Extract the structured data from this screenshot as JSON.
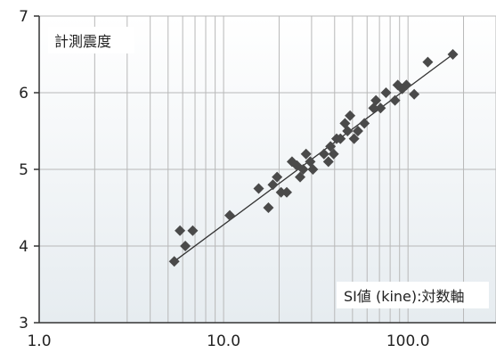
{
  "chart_data": {
    "type": "scatter",
    "title": "",
    "ylabel": "計測震度",
    "xlabel": "SI値 (kine):対数軸",
    "x_scale": "log",
    "xlim": [
      1,
      300
    ],
    "ylim": [
      3,
      7
    ],
    "x_ticks": [
      "1.0",
      "10.0",
      "100.0"
    ],
    "y_ticks": [
      "3",
      "4",
      "5",
      "6",
      "7"
    ],
    "grid": true,
    "colors": {
      "marker": "#4a4a4a",
      "grid": "#b8b8b8",
      "plot_bg_top": "#ffffff",
      "plot_bg_bottom": "#e6ecf0",
      "axis": "#333333"
    },
    "points": [
      [
        5.4,
        3.8
      ],
      [
        5.8,
        4.2
      ],
      [
        6.2,
        4.0
      ],
      [
        6.8,
        4.2
      ],
      [
        10.8,
        4.4
      ],
      [
        15.5,
        4.75
      ],
      [
        17.5,
        4.5
      ],
      [
        18.5,
        4.8
      ],
      [
        19.5,
        4.9
      ],
      [
        20.5,
        4.7
      ],
      [
        22,
        4.7
      ],
      [
        23.5,
        5.1
      ],
      [
        25,
        5.05
      ],
      [
        26,
        4.9
      ],
      [
        27,
        5.0
      ],
      [
        28,
        5.2
      ],
      [
        29.5,
        5.1
      ],
      [
        30.5,
        5.0
      ],
      [
        35,
        5.2
      ],
      [
        37,
        5.1
      ],
      [
        38,
        5.3
      ],
      [
        39.5,
        5.2
      ],
      [
        41,
        5.4
      ],
      [
        43,
        5.4
      ],
      [
        45.5,
        5.6
      ],
      [
        47,
        5.5
      ],
      [
        48.5,
        5.7
      ],
      [
        51,
        5.4
      ],
      [
        53.5,
        5.5
      ],
      [
        58,
        5.6
      ],
      [
        65,
        5.8
      ],
      [
        67,
        5.9
      ],
      [
        71,
        5.8
      ],
      [
        76,
        6.0
      ],
      [
        85,
        5.9
      ],
      [
        88,
        6.1
      ],
      [
        93,
        6.05
      ],
      [
        98,
        6.1
      ],
      [
        108,
        5.98
      ],
      [
        128,
        6.4
      ],
      [
        175,
        6.5
      ]
    ],
    "fit_line": [
      [
        5.4,
        3.8
      ],
      [
        175,
        6.5
      ]
    ]
  }
}
